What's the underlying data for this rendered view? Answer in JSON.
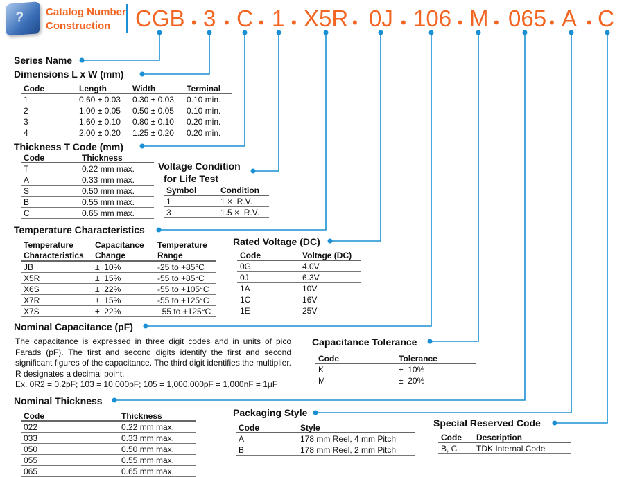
{
  "header": {
    "logo_text": "?",
    "label_line1": "Catalog Number",
    "label_line2": "Construction",
    "codes": [
      "CGB",
      "3",
      "C",
      "1",
      "X5R",
      "0J",
      "106",
      "M",
      "065",
      "A",
      "C"
    ],
    "separator": "•"
  },
  "colors": {
    "accent": "#f26522",
    "leader": "#1a8fd3"
  },
  "sections": {
    "series_name": "Series Name",
    "dimensions": {
      "title": "Dimensions L x W (mm)",
      "headers": [
        "Code",
        "Length",
        "Width",
        "Terminal"
      ],
      "rows": [
        [
          "1",
          "0.60 ± 0.03",
          "0.30 ± 0.03",
          "0.10 min."
        ],
        [
          "2",
          "1.00 ± 0.05",
          "0.50 ± 0.05",
          "0.10 min."
        ],
        [
          "3",
          "1.60 ± 0.10",
          "0.80 ± 0.10",
          "0.20 min."
        ],
        [
          "4",
          "2.00 ± 0.20",
          "1.25 ± 0.20",
          "0.20 min."
        ]
      ]
    },
    "thickness": {
      "title": "Thickness T Code (mm)",
      "headers": [
        "Code",
        "Thickness"
      ],
      "rows": [
        [
          "T",
          "0.22 mm max."
        ],
        [
          "A",
          "0.33 mm max."
        ],
        [
          "S",
          "0.50 mm max."
        ],
        [
          "B",
          "0.55 mm max."
        ],
        [
          "C",
          "0.65 mm max."
        ]
      ]
    },
    "voltage_condition": {
      "title_line1": "Voltage Condition",
      "title_line2": "for Life Test",
      "headers": [
        "Symbol",
        "Condition"
      ],
      "rows": [
        [
          "1",
          "1 ×  R.V."
        ],
        [
          "3",
          "1.5 ×  R.V."
        ]
      ]
    },
    "temperature": {
      "title": "Temperature Characteristics",
      "headers": [
        "Temperature\nCharacteristics",
        "Capacitance\nChange",
        "Temperature\nRange"
      ],
      "rows": [
        [
          "JB",
          "±  10%",
          "-25 to +85°C"
        ],
        [
          "X5R",
          "±  15%",
          "-55 to +85°C"
        ],
        [
          "X6S",
          "±  22%",
          "-55 to +105°C"
        ],
        [
          "X7R",
          "±  15%",
          "-55 to +125°C"
        ],
        [
          "X7S",
          "±  22%",
          "  55 to +125°C"
        ]
      ]
    },
    "rated_voltage": {
      "title": "Rated Voltage (DC)",
      "headers": [
        "Code",
        "Voltage (DC)"
      ],
      "rows": [
        [
          "0G",
          "4.0V"
        ],
        [
          "0J",
          "6.3V"
        ],
        [
          "1A",
          "10V"
        ],
        [
          "1C",
          "16V"
        ],
        [
          "1E",
          "25V"
        ]
      ]
    },
    "nominal_capacitance": {
      "title": "Nominal Capacitance (pF)",
      "text": "The capacitance is expressed in three digit codes and in units of pico Farads (pF).  The first and second digits identify the first and second significant figures of the capacitance.  The third digit identifies the multiplier.  R designates a decimal point.",
      "example": "Ex.  0R2 = 0.2pF; 103 = 10,000pF; 105 = 1,000,000pF = 1,000nF = 1μF"
    },
    "tolerance": {
      "title": "Capacitance Tolerance",
      "headers": [
        "Code",
        "Tolerance"
      ],
      "rows": [
        [
          "K",
          "±  10%"
        ],
        [
          "M",
          "±  20%"
        ]
      ]
    },
    "nominal_thickness": {
      "title": "Nominal Thickness",
      "headers": [
        "Code",
        "Thickness"
      ],
      "rows": [
        [
          "022",
          "0.22 mm max."
        ],
        [
          "033",
          "0.33 mm max."
        ],
        [
          "050",
          "0.50 mm max."
        ],
        [
          "055",
          "0.55 mm max."
        ],
        [
          "065",
          "0.65 mm max."
        ]
      ]
    },
    "packaging": {
      "title": "Packaging Style",
      "headers": [
        "Code",
        "Style"
      ],
      "rows": [
        [
          "A",
          "178 mm Reel, 4 mm Pitch"
        ],
        [
          "B",
          "178 mm Reel, 2 mm Pitch"
        ]
      ]
    },
    "special": {
      "title": "Special Reserved Code",
      "headers": [
        "Code",
        "Description"
      ],
      "rows": [
        [
          "B, C",
          "TDK Internal Code"
        ]
      ]
    }
  }
}
